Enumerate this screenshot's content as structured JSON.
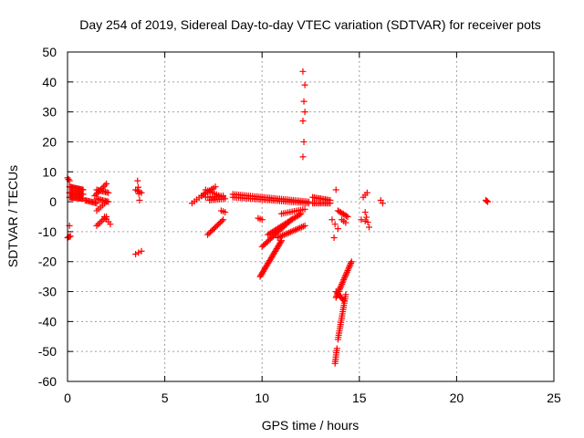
{
  "chart_data": {
    "type": "scatter",
    "title": "Day 254 of 2019, Sidereal Day-to-day VTEC variation (SDTVAR) for receiver pots",
    "xlabel": "GPS time / hours",
    "ylabel": "SDTVAR / TECUs",
    "xlim": [
      0,
      25
    ],
    "ylim": [
      -60,
      50
    ],
    "xticks": [
      0,
      5,
      10,
      15,
      20,
      25
    ],
    "yticks": [
      -60,
      -50,
      -40,
      -30,
      -20,
      -10,
      0,
      10,
      20,
      30,
      40,
      50
    ],
    "grid": true,
    "marker": "plus",
    "color": "#ff0000",
    "point_segments": [
      {
        "x0": 0.0,
        "x1": 0.1,
        "y0": 8,
        "y1": 7,
        "n": 3
      },
      {
        "x0": 0.0,
        "x1": 0.15,
        "y0": -12,
        "y1": -11.5,
        "n": 4
      },
      {
        "x0": 0.1,
        "x1": 0.1,
        "y0": -8,
        "y1": -8,
        "n": 1
      },
      {
        "x0": 0.1,
        "x1": 0.8,
        "y0": 5,
        "y1": 4,
        "n": 14
      },
      {
        "x0": 0.1,
        "x1": 0.8,
        "y0": 3,
        "y1": 2.5,
        "n": 14
      },
      {
        "x0": 0.1,
        "x1": 0.8,
        "y0": 1.5,
        "y1": 1,
        "n": 14
      },
      {
        "x0": 0.9,
        "x1": 1.5,
        "y0": 0.5,
        "y1": -0.5,
        "n": 10
      },
      {
        "x0": 1.4,
        "x1": 2.0,
        "y0": 2,
        "y1": 6,
        "n": 9
      },
      {
        "x0": 1.5,
        "x1": 2.1,
        "y0": 4,
        "y1": 3,
        "n": 9
      },
      {
        "x0": 1.5,
        "x1": 2.1,
        "y0": 1,
        "y1": 0,
        "n": 9
      },
      {
        "x0": 1.5,
        "x1": 2.0,
        "y0": -3,
        "y1": 0,
        "n": 6
      },
      {
        "x0": 1.5,
        "x1": 2.0,
        "y0": -8,
        "y1": -5,
        "n": 7
      },
      {
        "x0": 1.9,
        "x1": 2.2,
        "y0": -5,
        "y1": -7.5,
        "n": 4
      },
      {
        "x0": 3.5,
        "x1": 3.8,
        "y0": 4,
        "y1": 3,
        "n": 4
      },
      {
        "x0": 3.6,
        "x1": 3.7,
        "y0": 7,
        "y1": 0.5,
        "n": 4
      },
      {
        "x0": 3.5,
        "x1": 3.8,
        "y0": -17.5,
        "y1": -16.5,
        "n": 3
      },
      {
        "x0": 6.4,
        "x1": 7.0,
        "y0": -0.5,
        "y1": 2.5,
        "n": 6
      },
      {
        "x0": 6.9,
        "x1": 7.6,
        "y0": 2,
        "y1": 5,
        "n": 8
      },
      {
        "x0": 7.1,
        "x1": 8.0,
        "y0": 4,
        "y1": 1.5,
        "n": 9
      },
      {
        "x0": 7.1,
        "x1": 8.0,
        "y0": 1.5,
        "y1": 2,
        "n": 9
      },
      {
        "x0": 7.3,
        "x1": 8.1,
        "y0": 0.5,
        "y1": 1,
        "n": 9
      },
      {
        "x0": 7.2,
        "x1": 8.0,
        "y0": -11,
        "y1": -6,
        "n": 12
      },
      {
        "x0": 7.9,
        "x1": 8.1,
        "y0": -3,
        "y1": -3.5,
        "n": 3
      },
      {
        "x0": 8.5,
        "x1": 12.4,
        "y0": 2.5,
        "y1": 0,
        "n": 40
      },
      {
        "x0": 8.5,
        "x1": 12.4,
        "y0": 1.5,
        "y1": -0.5,
        "n": 40
      },
      {
        "x0": 9.8,
        "x1": 10.0,
        "y0": -5.5,
        "y1": -6,
        "n": 3
      },
      {
        "x0": 9.9,
        "x1": 11.0,
        "y0": -25,
        "y1": -13,
        "n": 28
      },
      {
        "x0": 10.0,
        "x1": 11.5,
        "y0": -15,
        "y1": -6,
        "n": 22
      },
      {
        "x0": 10.3,
        "x1": 12.0,
        "y0": -11,
        "y1": -4,
        "n": 24
      },
      {
        "x0": 10.8,
        "x1": 12.2,
        "y0": -12,
        "y1": -8,
        "n": 18
      },
      {
        "x0": 11.0,
        "x1": 12.2,
        "y0": -4,
        "y1": -2.5,
        "n": 12
      },
      {
        "x0": 12.1,
        "x1": 12.2,
        "y0": 43.5,
        "y1": 39,
        "n": 2
      },
      {
        "x0": 12.15,
        "x1": 12.2,
        "y0": 33.5,
        "y1": 30,
        "n": 2
      },
      {
        "x0": 12.1,
        "x1": 12.15,
        "y0": 27,
        "y1": 20,
        "n": 2
      },
      {
        "x0": 12.1,
        "x1": 12.1,
        "y0": 15,
        "y1": 15,
        "n": 1
      },
      {
        "x0": 12.6,
        "x1": 13.5,
        "y0": 1.5,
        "y1": 0.5,
        "n": 12
      },
      {
        "x0": 12.6,
        "x1": 13.5,
        "y0": -0.5,
        "y1": -0.5,
        "n": 12
      },
      {
        "x0": 13.8,
        "x1": 13.8,
        "y0": 4,
        "y1": 4,
        "n": 1
      },
      {
        "x0": 13.6,
        "x1": 13.9,
        "y0": -6,
        "y1": -9,
        "n": 3
      },
      {
        "x0": 13.7,
        "x1": 13.7,
        "y0": -12,
        "y1": -12,
        "n": 1
      },
      {
        "x0": 13.9,
        "x1": 14.4,
        "y0": -3,
        "y1": -5,
        "n": 8
      },
      {
        "x0": 14.1,
        "x1": 14.3,
        "y0": -6,
        "y1": -7,
        "n": 3
      },
      {
        "x0": 13.8,
        "x1": 14.6,
        "y0": -32,
        "y1": -20,
        "n": 25
      },
      {
        "x0": 13.8,
        "x1": 14.2,
        "y0": -30,
        "y1": -33,
        "n": 8
      },
      {
        "x0": 13.9,
        "x1": 14.3,
        "y0": -46,
        "y1": -31,
        "n": 22
      },
      {
        "x0": 13.75,
        "x1": 13.85,
        "y0": -54,
        "y1": -49,
        "n": 8
      },
      {
        "x0": 15.2,
        "x1": 15.4,
        "y0": 1.5,
        "y1": 3,
        "n": 3
      },
      {
        "x0": 15.3,
        "x1": 15.5,
        "y0": -3.5,
        "y1": -8.5,
        "n": 4
      },
      {
        "x0": 15.1,
        "x1": 15.3,
        "y0": -6,
        "y1": -6.5,
        "n": 2
      },
      {
        "x0": 16.1,
        "x1": 16.2,
        "y0": 0.5,
        "y1": -0.5,
        "n": 2
      },
      {
        "x0": 21.5,
        "x1": 21.6,
        "y0": 0.5,
        "y1": 0,
        "n": 3
      }
    ]
  }
}
